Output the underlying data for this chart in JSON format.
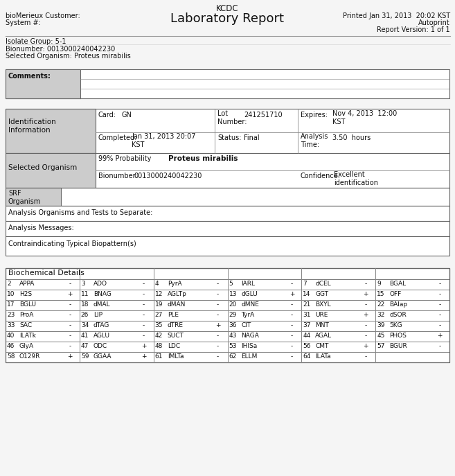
{
  "title": "KCDC",
  "subtitle": "Laboratory Report",
  "printed": "Printed Jan 31, 2013  20:02 KST",
  "autoprint": "Autoprint",
  "report_version": "Report Version: 1 of 1",
  "bio_customer": "bioMerieux Customer:",
  "system": "System #:",
  "isolate_group": "Isolate Group: 5-1",
  "bionumber_top": "Bionumber: 0013000240042230",
  "selected_org_top": "Selected Organism: Proteus mirabilis",
  "comments_label": "Comments:",
  "id_info_label": "Identification\nInformation",
  "card_label": "Card:",
  "card_val": "GN",
  "lot_label": "Lot\nNumber:",
  "lot_val": "241251710",
  "expires_label": "Expires:",
  "expires_val": "Nov 4, 2013  12:00\nKST",
  "completed_label": "Completed:",
  "completed_val": "Jan 31, 2013 20:07\nKST",
  "status_label": "Status:",
  "status_val": "Final",
  "analysis_time_label": "Analysis\nTime:",
  "analysis_time_val": "3.50  hours",
  "prob_label": "99% Probability",
  "organism_name": "Proteus mirabilis",
  "selected_organism_label": "Selected Organism",
  "bionumber_label": "Bionumber:",
  "bionumber_val": "0013000240042230",
  "confidence_label": "Confidence:",
  "confidence_val": "Excellent\nidentification",
  "srf_label": "SRF\nOrganism",
  "analysis_orgs_label": "Analysis Organisms and Tests to Separate:",
  "analysis_msg_label": "Analysis Messages:",
  "contraindicating_label": "Contraindicating Typical Biopattern(s)",
  "biochem_label": "Biochemical Details",
  "biochem_rows": [
    [
      "2",
      "APPA",
      "-",
      "3",
      "ADO",
      "-",
      "4",
      "PyrA",
      "-",
      "5",
      "lARL",
      "-",
      "7",
      "dCEL",
      "-",
      "9",
      "BGAL",
      "-"
    ],
    [
      "10",
      "H2S",
      "+",
      "11",
      "BNAG",
      "-",
      "12",
      "AGLTp",
      "-",
      "13",
      "dGLU",
      "+",
      "14",
      "GGT",
      "+",
      "15",
      "OFF",
      "-"
    ],
    [
      "17",
      "BGLU",
      "-",
      "18",
      "dMAL",
      "-",
      "19",
      "dMAN",
      "-",
      "20",
      "dMNE",
      "-",
      "21",
      "BXYL",
      "-",
      "22",
      "BAlap",
      "-"
    ],
    [
      "23",
      "ProA",
      "-",
      "26",
      "LIP",
      "-",
      "27",
      "PLE",
      "-",
      "29",
      "TyrA",
      "-",
      "31",
      "URE",
      "+",
      "32",
      "dSOR",
      "-"
    ],
    [
      "33",
      "SAC",
      "-",
      "34",
      "dTAG",
      "-",
      "35",
      "dTRE",
      "+",
      "36",
      "CIT",
      "-",
      "37",
      "MNT",
      "-",
      "39",
      "5KG",
      "-"
    ],
    [
      "40",
      "ILATk",
      "-",
      "41",
      "AGLU",
      "-",
      "42",
      "SUCT",
      "-",
      "43",
      "NAGA",
      "-",
      "44",
      "AGAL",
      "-",
      "45",
      "PHOS",
      "+"
    ],
    [
      "46",
      "GlyA",
      "-",
      "47",
      "ODC",
      "+",
      "48",
      "LDC",
      "-",
      "53",
      "IHISa",
      "-",
      "56",
      "CMT",
      "+",
      "57",
      "BGUR",
      "-"
    ],
    [
      "58",
      "O129R",
      "+",
      "59",
      "GGAA",
      "+",
      "61",
      "IMLTa",
      "-",
      "62",
      "ELLM",
      "-",
      "64",
      "ILATa",
      "-",
      "",
      "",
      ""
    ]
  ],
  "bg_color": "#f5f5f5",
  "header_bg": "#cccccc",
  "table_border": "#666666",
  "text_color": "#111111",
  "font_size": 7.0
}
